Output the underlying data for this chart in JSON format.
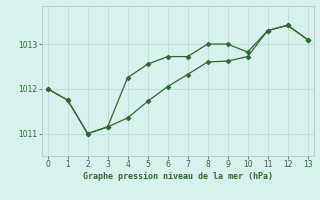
{
  "line1_x": [
    0,
    1,
    2,
    3,
    4,
    5,
    6,
    7,
    8,
    9,
    10,
    11,
    12,
    13
  ],
  "line1_y": [
    1012.0,
    1011.75,
    1011.0,
    1011.15,
    1012.25,
    1012.55,
    1012.72,
    1012.72,
    1013.0,
    1013.0,
    1012.82,
    1013.3,
    1013.42,
    1013.1
  ],
  "line2_x": [
    0,
    1,
    2,
    3,
    4,
    5,
    6,
    7,
    8,
    9,
    10,
    11,
    12,
    13
  ],
  "line2_y": [
    1012.0,
    1011.75,
    1011.0,
    1011.15,
    1011.35,
    1011.72,
    1012.05,
    1012.32,
    1012.6,
    1012.62,
    1012.72,
    1013.3,
    1013.42,
    1013.1
  ],
  "line_color": "#2d6a2d",
  "bg_color": "#d8f0ee",
  "grid_color_major": "#b8d8d5",
  "grid_color_minor": "#cce8e5",
  "xlabel": "Graphe pression niveau de la mer (hPa)",
  "xlabel_color": "#2d6a2d",
  "yticks": [
    1011,
    1012,
    1013
  ],
  "xticks": [
    0,
    1,
    2,
    3,
    4,
    5,
    6,
    7,
    8,
    9,
    10,
    11,
    12,
    13
  ],
  "ylim": [
    1010.5,
    1013.85
  ],
  "xlim": [
    -0.3,
    13.3
  ],
  "figsize": [
    3.2,
    2.0
  ],
  "dpi": 100
}
